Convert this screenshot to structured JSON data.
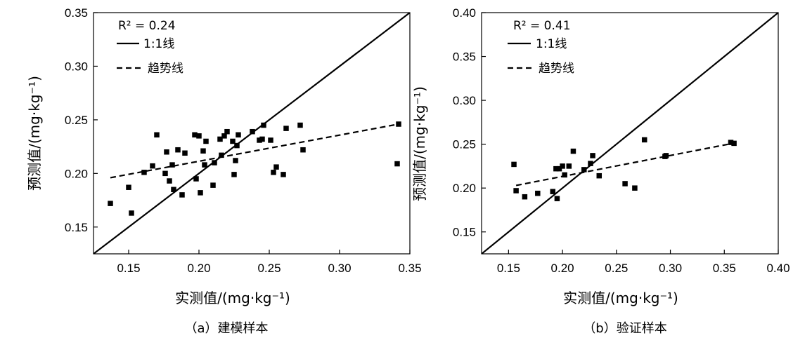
{
  "chart_data": [
    {
      "type": "scatter",
      "subtitle": "（a）建模样本",
      "xlabel": "实测值/(mg·kg⁻¹)",
      "ylabel": "预测值/(mg·kg⁻¹)",
      "xlim": [
        0.125,
        0.35
      ],
      "ylim": [
        0.125,
        0.35
      ],
      "xticks": [
        "0.15",
        "0.20",
        "0.25",
        "0.30",
        "0.35"
      ],
      "yticks": [
        "0.15",
        "0.20",
        "0.25",
        "0.30",
        "0.35"
      ],
      "r2_label": "R² = 0.24",
      "legend": [
        {
          "style": "solid",
          "label": "1:1线"
        },
        {
          "style": "dashed",
          "label": "趋势线"
        }
      ],
      "legend_position": "top-left",
      "grid": false,
      "trend_line": {
        "x": [
          0.137,
          0.342
        ],
        "y": [
          0.196,
          0.246
        ]
      },
      "points": [
        {
          "x": 0.137,
          "y": 0.172
        },
        {
          "x": 0.15,
          "y": 0.187
        },
        {
          "x": 0.152,
          "y": 0.163
        },
        {
          "x": 0.161,
          "y": 0.201
        },
        {
          "x": 0.167,
          "y": 0.207
        },
        {
          "x": 0.17,
          "y": 0.236
        },
        {
          "x": 0.176,
          "y": 0.2
        },
        {
          "x": 0.177,
          "y": 0.22
        },
        {
          "x": 0.179,
          "y": 0.193
        },
        {
          "x": 0.181,
          "y": 0.208
        },
        {
          "x": 0.182,
          "y": 0.185
        },
        {
          "x": 0.185,
          "y": 0.222
        },
        {
          "x": 0.188,
          "y": 0.18
        },
        {
          "x": 0.19,
          "y": 0.219
        },
        {
          "x": 0.197,
          "y": 0.236
        },
        {
          "x": 0.198,
          "y": 0.195
        },
        {
          "x": 0.2,
          "y": 0.235
        },
        {
          "x": 0.201,
          "y": 0.182
        },
        {
          "x": 0.203,
          "y": 0.221
        },
        {
          "x": 0.204,
          "y": 0.208
        },
        {
          "x": 0.205,
          "y": 0.23
        },
        {
          "x": 0.21,
          "y": 0.189
        },
        {
          "x": 0.211,
          "y": 0.21
        },
        {
          "x": 0.215,
          "y": 0.232
        },
        {
          "x": 0.216,
          "y": 0.217
        },
        {
          "x": 0.218,
          "y": 0.235
        },
        {
          "x": 0.22,
          "y": 0.239
        },
        {
          "x": 0.224,
          "y": 0.23
        },
        {
          "x": 0.225,
          "y": 0.199
        },
        {
          "x": 0.226,
          "y": 0.212
        },
        {
          "x": 0.227,
          "y": 0.226
        },
        {
          "x": 0.228,
          "y": 0.236
        },
        {
          "x": 0.238,
          "y": 0.239
        },
        {
          "x": 0.243,
          "y": 0.231
        },
        {
          "x": 0.245,
          "y": 0.232
        },
        {
          "x": 0.246,
          "y": 0.245
        },
        {
          "x": 0.251,
          "y": 0.231
        },
        {
          "x": 0.253,
          "y": 0.201
        },
        {
          "x": 0.255,
          "y": 0.206
        },
        {
          "x": 0.26,
          "y": 0.199
        },
        {
          "x": 0.262,
          "y": 0.242
        },
        {
          "x": 0.272,
          "y": 0.245
        },
        {
          "x": 0.274,
          "y": 0.222
        },
        {
          "x": 0.341,
          "y": 0.209
        },
        {
          "x": 0.342,
          "y": 0.246
        }
      ]
    },
    {
      "type": "scatter",
      "subtitle": "（b）验证样本",
      "xlabel": "实测值/(mg·kg⁻¹)",
      "ylabel": "预测值/(mg·kg⁻¹)",
      "xlim": [
        0.125,
        0.4
      ],
      "ylim": [
        0.125,
        0.4
      ],
      "xticks": [
        "0.15",
        "0.20",
        "0.25",
        "0.30",
        "0.35",
        "0.40"
      ],
      "yticks": [
        "0.15",
        "0.20",
        "0.25",
        "0.30",
        "0.35",
        "0.40"
      ],
      "r2_label": "R² = 0.41",
      "legend": [
        {
          "style": "solid",
          "label": "1:1线"
        },
        {
          "style": "dashed",
          "label": "趋势线"
        }
      ],
      "legend_position": "top-left",
      "grid": false,
      "trend_line": {
        "x": [
          0.157,
          0.358
        ],
        "y": [
          0.203,
          0.251
        ]
      },
      "points": [
        {
          "x": 0.155,
          "y": 0.227
        },
        {
          "x": 0.157,
          "y": 0.197
        },
        {
          "x": 0.165,
          "y": 0.19
        },
        {
          "x": 0.177,
          "y": 0.194
        },
        {
          "x": 0.191,
          "y": 0.196
        },
        {
          "x": 0.194,
          "y": 0.222
        },
        {
          "x": 0.195,
          "y": 0.188
        },
        {
          "x": 0.197,
          "y": 0.222
        },
        {
          "x": 0.2,
          "y": 0.225
        },
        {
          "x": 0.202,
          "y": 0.215
        },
        {
          "x": 0.206,
          "y": 0.225
        },
        {
          "x": 0.21,
          "y": 0.242
        },
        {
          "x": 0.22,
          "y": 0.221
        },
        {
          "x": 0.226,
          "y": 0.228
        },
        {
          "x": 0.228,
          "y": 0.237
        },
        {
          "x": 0.234,
          "y": 0.214
        },
        {
          "x": 0.258,
          "y": 0.205
        },
        {
          "x": 0.267,
          "y": 0.2
        },
        {
          "x": 0.276,
          "y": 0.255
        },
        {
          "x": 0.295,
          "y": 0.236
        },
        {
          "x": 0.296,
          "y": 0.237
        },
        {
          "x": 0.356,
          "y": 0.252
        },
        {
          "x": 0.359,
          "y": 0.251
        }
      ]
    }
  ]
}
